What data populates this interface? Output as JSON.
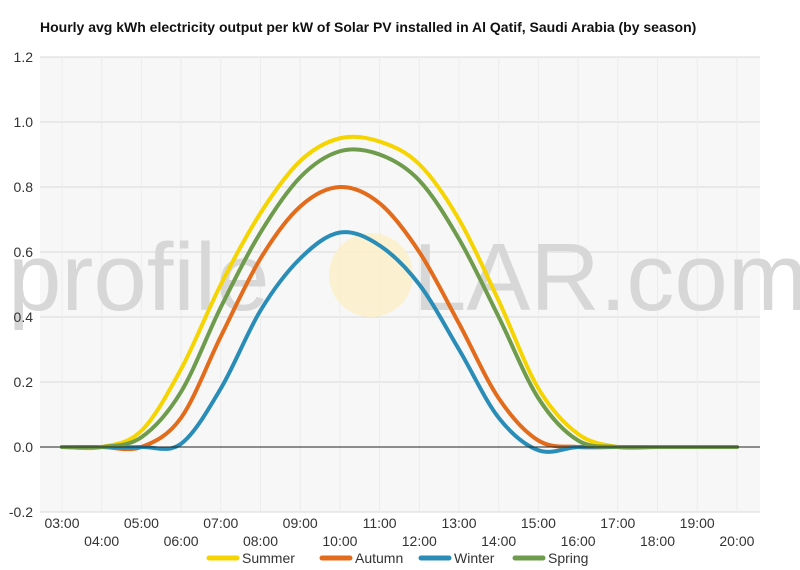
{
  "title": "Hourly avg kWh electricity output per kW of Solar PV installed in Al Qatif, Saudi Arabia (by season)",
  "watermark": {
    "text_left": "profile",
    "text_right": "LAR.com"
  },
  "chart_data": {
    "type": "line",
    "title": "Hourly avg kWh electricity output per kW of Solar PV installed in Al Qatif, Saudi Arabia (by season)",
    "x": [
      "03:00",
      "04:00",
      "05:00",
      "06:00",
      "07:00",
      "08:00",
      "09:00",
      "10:00",
      "11:00",
      "12:00",
      "13:00",
      "14:00",
      "15:00",
      "16:00",
      "17:00",
      "18:00",
      "19:00",
      "20:00"
    ],
    "ylim": [
      -0.2,
      1.2
    ],
    "y_ticks": [
      "1.2",
      "1.0",
      "0.8",
      "0.6",
      "0.4",
      "0.2",
      "0.0",
      "-0.2"
    ],
    "grid": true,
    "legend_position": "bottom",
    "series": [
      {
        "name": "Summer",
        "color": "#f5d400",
        "values": [
          0.0,
          0.0,
          0.05,
          0.24,
          0.5,
          0.72,
          0.88,
          0.95,
          0.94,
          0.87,
          0.7,
          0.45,
          0.18,
          0.04,
          0.0,
          0.0,
          0.0,
          0.0
        ]
      },
      {
        "name": "Autumn",
        "color": "#e36c1c",
        "values": [
          0.0,
          0.0,
          0.0,
          0.09,
          0.34,
          0.58,
          0.74,
          0.8,
          0.75,
          0.6,
          0.38,
          0.15,
          0.02,
          0.0,
          0.0,
          0.0,
          0.0,
          0.0
        ]
      },
      {
        "name": "Winter",
        "color": "#2a8db8",
        "values": [
          0.0,
          0.0,
          0.0,
          0.01,
          0.18,
          0.42,
          0.58,
          0.66,
          0.62,
          0.5,
          0.3,
          0.09,
          -0.01,
          0.0,
          0.0,
          0.0,
          0.0,
          0.0
        ]
      },
      {
        "name": "Spring",
        "color": "#6e9b4c",
        "values": [
          0.0,
          0.0,
          0.03,
          0.17,
          0.43,
          0.66,
          0.83,
          0.91,
          0.9,
          0.82,
          0.64,
          0.4,
          0.15,
          0.02,
          0.0,
          0.0,
          0.0,
          0.0
        ]
      }
    ]
  }
}
